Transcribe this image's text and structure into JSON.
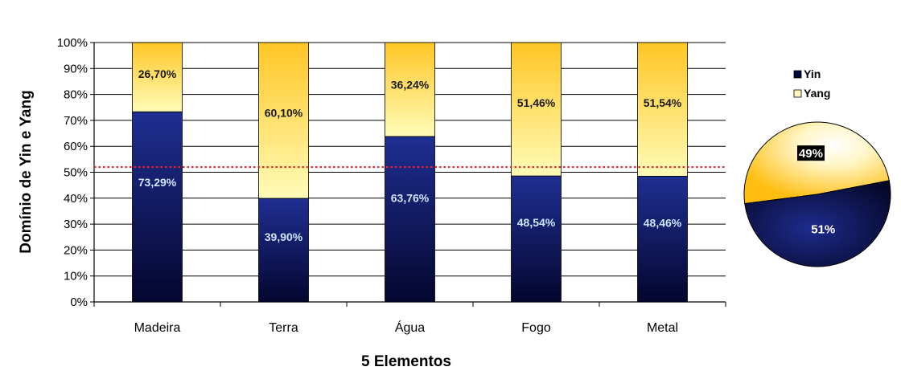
{
  "chart_data": [
    {
      "type": "bar",
      "stacked": true,
      "categories": [
        "Madeira",
        "Terra",
        "Água",
        "Fogo",
        "Metal"
      ],
      "series": [
        {
          "name": "Yin",
          "values": [
            73.29,
            39.9,
            63.76,
            48.54,
            48.46
          ],
          "labels": [
            "73,29%",
            "39,90%",
            "63,76%",
            "48,54%",
            "48,46%"
          ]
        },
        {
          "name": "Yang",
          "values": [
            26.7,
            60.1,
            36.24,
            51.46,
            51.54
          ],
          "labels": [
            "26,70%",
            "60,10%",
            "36,24%",
            "51,46%",
            "51,54%"
          ]
        }
      ],
      "xlabel": "5 Elementos",
      "ylabel": "Domínio de Yin e Yang",
      "ylim": [
        0,
        100
      ],
      "yticks": [
        "0%",
        "10%",
        "20%",
        "30%",
        "40%",
        "50%",
        "60%",
        "70%",
        "80%",
        "90%",
        "100%"
      ],
      "reference_line": {
        "value": 52,
        "style": "dotted",
        "color": "#e8212b"
      },
      "grid": true
    },
    {
      "type": "pie",
      "categories": [
        "Yin",
        "Yang"
      ],
      "values": [
        51,
        49
      ],
      "labels": [
        "51%",
        "49%"
      ],
      "legend": "top"
    }
  ],
  "colors": {
    "yin_dark": "#050838",
    "yin_light": "#1a2a8a",
    "yang_dark": "#ffc21a",
    "yang_light": "#fffbb0"
  }
}
